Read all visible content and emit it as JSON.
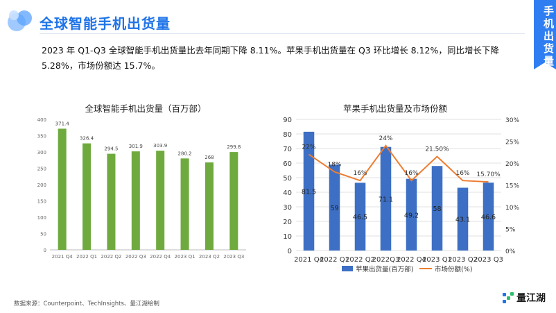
{
  "page": {
    "title": "全球智能手机出货量",
    "side_tab": "手机出货量",
    "summary": "2023 年 Q1-Q3 全球智能手机出货量比去年同期下降 8.11%。苹果手机出货量在 Q3 环比增长 8.12%，同比增长下降 5.28%，市场份额达 15.7%。",
    "source": "数据来源：Counterpoint、TechInsights、量江湖绘制",
    "brand": "量江湖",
    "colors": {
      "accent": "#1f74e8",
      "green_bar": "#6faa3e",
      "blue_bar": "#3d6fc4",
      "orange_line": "#ed7d31"
    }
  },
  "chart_data": [
    {
      "type": "bar",
      "title": "全球智能手机出货量（百万部）",
      "categories": [
        "2021 Q4",
        "2022 Q1",
        "2022 Q2",
        "2022 Q3",
        "2022 Q4",
        "2023 Q1",
        "2023 Q2",
        "2023 Q3"
      ],
      "values": [
        371.4,
        326.4,
        294.5,
        301.9,
        303.9,
        280.2,
        268,
        299.8
      ],
      "labels": [
        "371.4",
        "326.4",
        "294.5",
        "301.9",
        "303.9",
        "280.2",
        "268",
        "299.8"
      ],
      "ylim": [
        0,
        400
      ],
      "yticks": [
        0,
        50,
        100,
        150,
        200,
        250,
        300,
        350,
        400
      ],
      "color": "#6faa3e",
      "grid": false
    },
    {
      "type": "bar+line",
      "title": "苹果手机出货量及市场份额",
      "categories": [
        "2021 Q4",
        "2022 Q1",
        "2022 Q2",
        "2022Q3",
        "2022 Q4",
        "2023 Q1",
        "2023 Q2",
        "2023 Q3"
      ],
      "series": [
        {
          "name": "苹果出货量(百万部)",
          "kind": "bar",
          "axis": "left",
          "values": [
            81.5,
            59,
            46.5,
            71.1,
            49.2,
            58,
            43.1,
            46.6
          ],
          "labels": [
            "81.5",
            "59",
            "46.5",
            "71.1",
            "49.2",
            "58",
            "43.1",
            "46.6"
          ],
          "color": "#3d6fc4"
        },
        {
          "name": "市场份额(%)",
          "kind": "line",
          "axis": "right",
          "values": [
            22,
            18,
            16,
            24,
            16,
            21.5,
            16,
            15.7
          ],
          "labels": [
            "22%",
            "18%",
            "16%",
            "24%",
            "16%",
            "21.50%",
            "16%",
            "15.70%"
          ],
          "color": "#ed7d31"
        }
      ],
      "ylim_left": [
        0,
        90
      ],
      "yticks_left": [
        0,
        10,
        20,
        30,
        40,
        50,
        60,
        70,
        80,
        90
      ],
      "ylim_right": [
        0,
        30
      ],
      "yticks_right": [
        "0%",
        "5%",
        "10%",
        "15%",
        "20%",
        "25%",
        "30%"
      ],
      "legend": "bottom-center",
      "grid": true
    }
  ]
}
